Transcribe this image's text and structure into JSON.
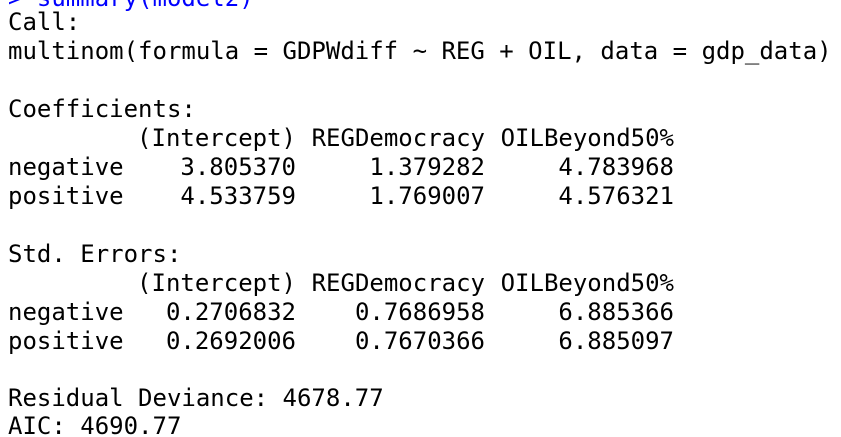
{
  "previous_command": "> summary(model2)",
  "call": {
    "label": "Call:",
    "formula": "multinom(formula = GDPWdiff ~ REG + OIL, data = gdp_data)"
  },
  "coefficients": {
    "label": "Coefficients:",
    "headers": [
      "(Intercept)",
      "REGDemocracy",
      "OILBeyond50%"
    ],
    "rows": [
      {
        "name": "negative",
        "values": [
          "3.805370",
          "1.379282",
          "4.783968"
        ]
      },
      {
        "name": "positive",
        "values": [
          "4.533759",
          "1.769007",
          "4.576321"
        ]
      }
    ]
  },
  "std_errors": {
    "label": "Std. Errors:",
    "headers": [
      "(Intercept)",
      "REGDemocracy",
      "OILBeyond50%"
    ],
    "rows": [
      {
        "name": "negative",
        "values": [
          "0.2706832",
          "0.7686958",
          "6.885366"
        ]
      },
      {
        "name": "positive",
        "values": [
          "0.2692006",
          "0.7670366",
          "6.885097"
        ]
      }
    ]
  },
  "residual_deviance": "Residual Deviance: 4678.77",
  "aic": "AIC: 4690.77"
}
